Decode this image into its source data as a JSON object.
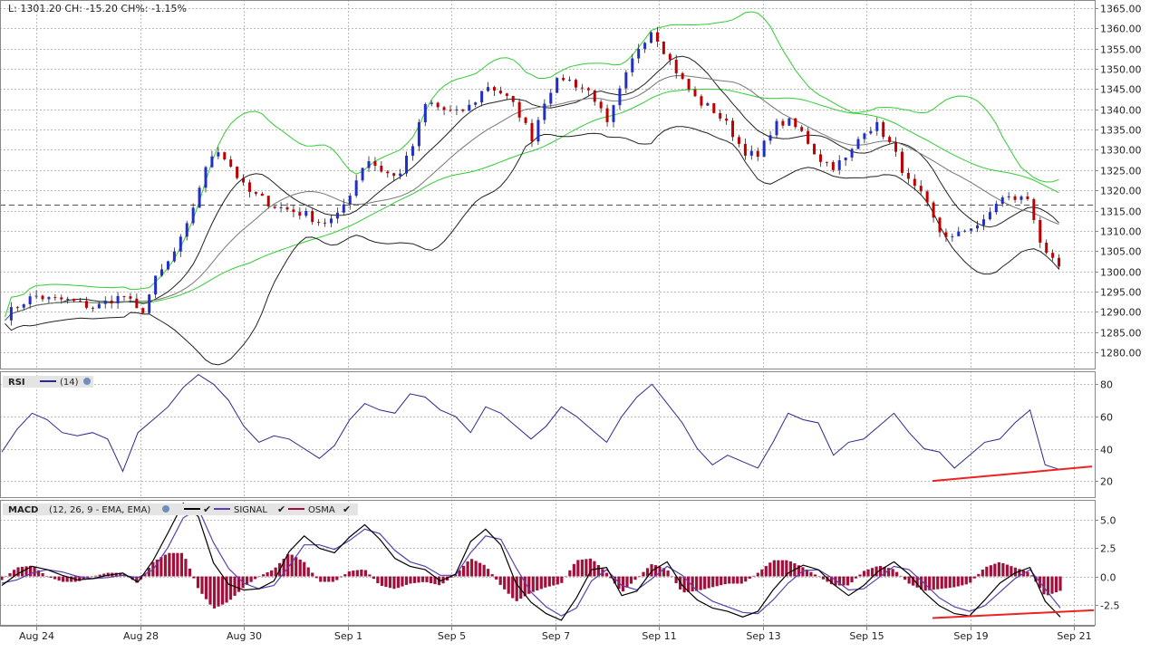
{
  "header": {
    "stats": "L: 1301.20 CH: -15.20 CH%: -1.15%"
  },
  "colors": {
    "up_candle": "#1f2fc8",
    "down_candle": "#c00000",
    "bollinger": "#33cc33",
    "keltner": "#222222",
    "rsi_line": "#2a2a8c",
    "macd_line": "#000000",
    "signal_line": "#5a3fb0",
    "osma_hist": "#a0103a",
    "trend_line": "#ee2222",
    "grid": "#bbbbbb"
  },
  "x_axis": {
    "tick_labels": [
      "Aug 24",
      "Aug 28",
      "Aug 30",
      "Sep 1",
      "Sep 5",
      "Sep 7",
      "Sep 11",
      "Sep 13",
      "Sep 15",
      "Sep 19",
      "Sep 21"
    ],
    "tick_index": [
      0.35,
      1.35,
      2.35,
      3.35,
      4.35,
      5.35,
      6.35,
      7.35,
      8.35,
      9.35,
      10.35
    ],
    "sessions": 10.55
  },
  "legends": {
    "rsi": {
      "name": "RSI",
      "param": "(14)"
    },
    "macd": {
      "name": "MACD",
      "param": "(12, 26, 9 - EMA, EMA)",
      "signal": "SIGNAL",
      "osma": "OSMA"
    }
  },
  "chart_data": [
    {
      "type": "candlestick",
      "panel": "price",
      "ylim": [
        1276,
        1367
      ],
      "yticks": [
        "1365.00",
        "1360.00",
        "1355.00",
        "1350.00",
        "1345.00",
        "1340.00",
        "1335.00",
        "1330.00",
        "1325.00",
        "1320.00",
        "1315.00",
        "1310.00",
        "1305.00",
        "1300.00",
        "1295.00",
        "1290.00",
        "1285.00",
        "1280.00"
      ],
      "reference_level": 1316.4,
      "last_close": 1301.2,
      "series_points_per_session": 16,
      "path": [
        1289,
        1292,
        1294,
        1293,
        1293,
        1292,
        1291,
        1293,
        1294,
        1289,
        1298,
        1303,
        1310,
        1322,
        1331,
        1326,
        1320,
        1318,
        1316,
        1315,
        1314,
        1312,
        1313,
        1320,
        1328,
        1325,
        1323,
        1330,
        1342,
        1340,
        1339,
        1341,
        1346,
        1344,
        1340,
        1333,
        1344,
        1348,
        1346,
        1344,
        1336,
        1346,
        1355,
        1360,
        1353,
        1347,
        1342,
        1340,
        1336,
        1330,
        1328,
        1336,
        1337,
        1334,
        1328,
        1326,
        1328,
        1335,
        1336,
        1330,
        1322,
        1318,
        1310,
        1308,
        1311,
        1312,
        1318,
        1318,
        1318,
        1304,
        1301
      ]
    },
    {
      "type": "line",
      "panel": "rsi",
      "name": "RSI",
      "ylim": [
        10,
        88
      ],
      "yticks": [
        "80",
        "60",
        "40",
        "20"
      ],
      "values": [
        38,
        52,
        62,
        58,
        50,
        48,
        50,
        46,
        26,
        50,
        58,
        66,
        78,
        86,
        80,
        70,
        54,
        44,
        48,
        46,
        40,
        34,
        42,
        58,
        68,
        64,
        62,
        74,
        72,
        64,
        60,
        50,
        66,
        62,
        54,
        46,
        54,
        66,
        60,
        52,
        44,
        60,
        72,
        80,
        68,
        56,
        40,
        30,
        36,
        32,
        28,
        44,
        62,
        58,
        56,
        36,
        44,
        46,
        54,
        62,
        50,
        40,
        38,
        28,
        36,
        44,
        46,
        56,
        64,
        30,
        27
      ]
    },
    {
      "type": "line",
      "panel": "macd",
      "ylim": [
        -4.3,
        6.8
      ],
      "yticks": [
        "5.0",
        "2.5",
        "0.0",
        "-2.5"
      ],
      "series": [
        {
          "name": "MACD",
          "values": [
            -0.8,
            0.2,
            0.9,
            0.6,
            0.1,
            -0.3,
            -0.2,
            0.1,
            0.3,
            -0.5,
            1.4,
            3.9,
            6.5,
            5.3,
            1.2,
            -0.7,
            -1.2,
            -1.1,
            -0.4,
            2.2,
            3.6,
            2.5,
            2.1,
            3.5,
            4.6,
            3.3,
            1.6,
            0.9,
            0.6,
            -0.4,
            0.2,
            3.1,
            4.2,
            2.8,
            -0.6,
            -2.3,
            -3.3,
            -3.9,
            -1.9,
            0.6,
            0.8,
            -1.7,
            -1.3,
            0.5,
            1.3,
            -0.8,
            -2.1,
            -2.8,
            -3.1,
            -3.6,
            -3.1,
            -1.2,
            0.3,
            1.0,
            0.6,
            -0.7,
            -1.7,
            -0.8,
            0.5,
            1.3,
            0.2,
            -1.4,
            -2.6,
            -3.3,
            -3.5,
            -2.1,
            -0.6,
            0.3,
            0.8,
            -2.2,
            -3.6
          ]
        },
        {
          "name": "SIGNAL",
          "values": [
            -0.6,
            -0.3,
            0.3,
            0.6,
            0.4,
            0.0,
            -0.2,
            -0.1,
            0.1,
            -0.1,
            0.6,
            2.6,
            5.2,
            6.0,
            3.0,
            0.7,
            -0.6,
            -1.1,
            -0.8,
            0.9,
            2.8,
            2.8,
            2.4,
            3.2,
            4.2,
            3.8,
            2.3,
            1.3,
            0.9,
            0.1,
            0.1,
            2.1,
            3.6,
            3.3,
            0.8,
            -1.4,
            -2.7,
            -3.5,
            -2.8,
            -0.4,
            0.6,
            -0.8,
            -1.2,
            -0.2,
            0.9,
            0.1,
            -1.3,
            -2.2,
            -2.7,
            -3.2,
            -3.3,
            -2.1,
            -0.6,
            0.5,
            0.6,
            -0.2,
            -1.2,
            -1.1,
            -0.1,
            0.9,
            0.6,
            -0.6,
            -1.9,
            -2.7,
            -3.1,
            -2.6,
            -1.4,
            -0.2,
            0.6,
            -1.1,
            -2.8
          ]
        }
      ]
    }
  ]
}
